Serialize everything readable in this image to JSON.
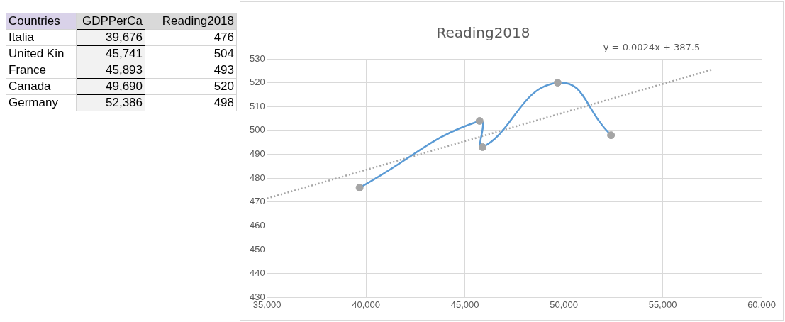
{
  "chart_data": [
    {
      "type": "other",
      "annotations": [
        "Countries",
        "GDPPerCa",
        "Reading2018",
        "Italia",
        "39,676",
        "476",
        "United Kin",
        "45,741",
        "504",
        "France",
        "45,893",
        "493",
        "Canada",
        "49,690",
        "520",
        "Germany",
        "52,386",
        "498"
      ]
    },
    {
      "type": "scatter",
      "title": "Reading2018",
      "xlim": [
        35000,
        60000
      ],
      "xticks": [
        {
          "value": 35000,
          "label": "35,000"
        },
        {
          "value": 40000,
          "label": "40,000"
        },
        {
          "value": 45000,
          "label": "45,000"
        },
        {
          "value": 50000,
          "label": "50,000"
        },
        {
          "value": 55000,
          "label": "55,000"
        },
        {
          "value": 60000,
          "label": "60,000"
        }
      ],
      "ylim": [
        430,
        530
      ],
      "yticks": [
        430,
        440,
        450,
        460,
        470,
        480,
        490,
        500,
        510,
        520,
        530
      ],
      "grid": true,
      "x": [
        39676,
        45741,
        45893,
        49690,
        52386
      ],
      "series": [
        {
          "type": "line",
          "color": "#5b9bd5",
          "marker": "none",
          "values": [
            476,
            504,
            493,
            520,
            498
          ]
        },
        {
          "type": "scatter",
          "color": "#a5a5a5",
          "marker": "circle",
          "values": [
            476,
            504,
            493,
            520,
            498
          ]
        },
        {
          "type": "line",
          "color": "#a5a5a5",
          "marker": "none",
          "line_style": "dotted",
          "x": [
            35000,
            57500
          ],
          "values": [
            471.5,
            525.5
          ]
        }
      ],
      "annotations": [
        "y = 0.0024x + 387.5"
      ]
    }
  ]
}
